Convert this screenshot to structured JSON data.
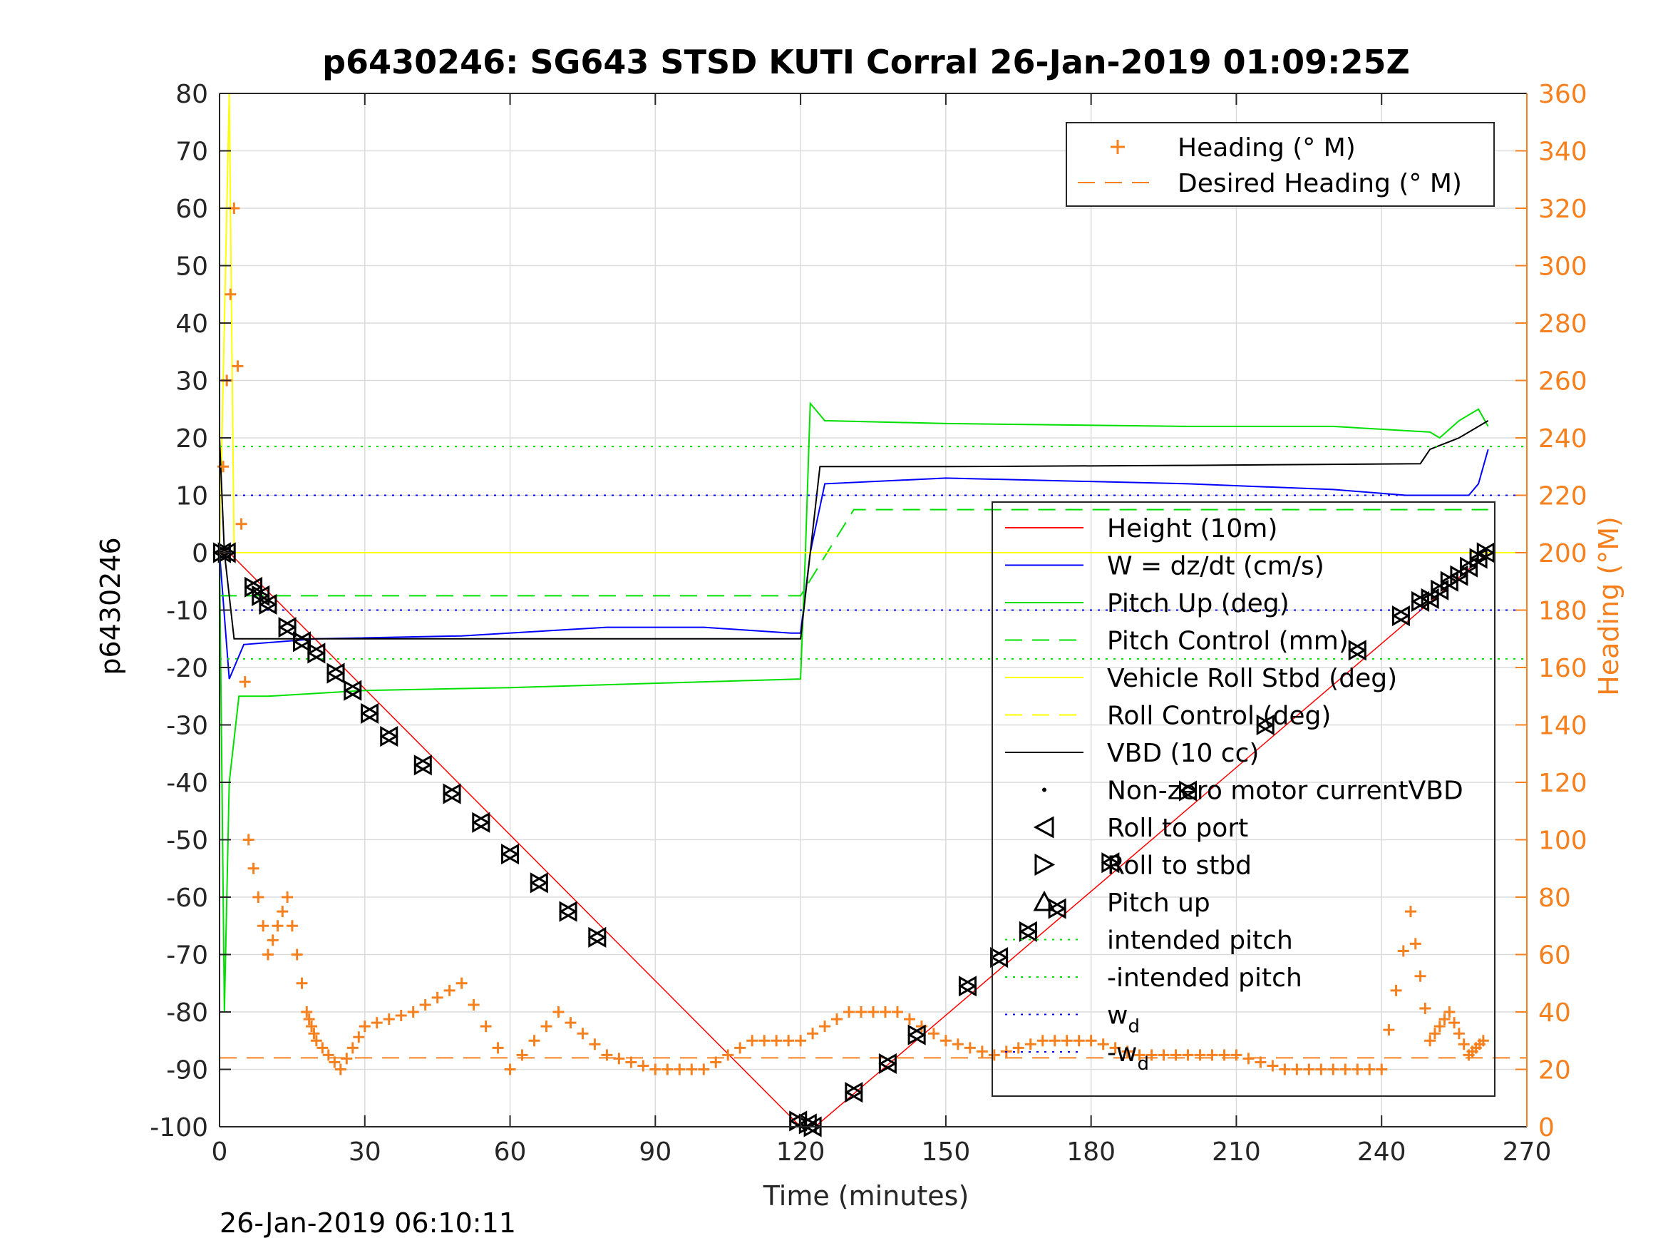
{
  "chart_data": {
    "type": "line",
    "title": "p6430246: SG643 STSD KUTI Corral 26-Jan-2019 01:09:25Z",
    "xlabel": "Time (minutes)",
    "ylabel": "p6430246",
    "y2label": "Heading (°M)",
    "footer": "26-Jan-2019 06:10:11",
    "xlim": [
      0,
      270
    ],
    "ylim": [
      -100,
      80
    ],
    "y2lim": [
      0,
      360
    ],
    "grid": true,
    "xticks": [
      "0",
      "30",
      "60",
      "90",
      "120",
      "150",
      "180",
      "210",
      "240",
      "270"
    ],
    "yticks": [
      "80",
      "70",
      "60",
      "50",
      "40",
      "30",
      "20",
      "10",
      "0",
      "-10",
      "-20",
      "-30",
      "-40",
      "-50",
      "-60",
      "-70",
      "-80",
      "-90",
      "-100"
    ],
    "y2ticks": [
      "360",
      "340",
      "320",
      "300",
      "280",
      "260",
      "240",
      "220",
      "200",
      "180",
      "160",
      "140",
      "120",
      "100",
      "80",
      "60",
      "40",
      "20",
      "0"
    ],
    "legend_right": [
      "Heading (° M)",
      "Desired Heading (° M)"
    ],
    "legend_main": [
      "Height (10m)",
      "W = dz/dt (cm/s)",
      "Pitch Up (deg)",
      "Pitch Control (mm)",
      "Vehicle Roll Stbd (deg)",
      "Roll Control (deg)",
      "VBD (10 cc)",
      "Non-zero motor currentVBD",
      "Roll to port",
      "Roll to stbd",
      "Pitch up",
      "intended pitch",
      "-intended pitch",
      "w",
      "-w"
    ],
    "legend_subscript": "d",
    "colors": {
      "height": "#ff0000",
      "w": "#0000ff",
      "pitch": "#00e000",
      "roll": "#ffff00",
      "vbd": "#000000",
      "heading": "#f7801e",
      "axis": "#262626",
      "grid": "#dcdcdc"
    },
    "series": [
      {
        "name": "Height (10m)",
        "x": [
          0,
          2,
          120,
          122,
          123,
          262
        ],
        "y": [
          0,
          0,
          -100,
          -100,
          -100,
          0
        ]
      },
      {
        "name": "W = dz/dt (cm/s)",
        "x": [
          0,
          2,
          5,
          20,
          50,
          80,
          100,
          118,
          120,
          122,
          125,
          150,
          200,
          230,
          245,
          258,
          260,
          262
        ],
        "y": [
          0,
          -22,
          -16,
          -15,
          -14.5,
          -13,
          -13,
          -14,
          -14,
          0,
          12,
          13,
          12,
          11,
          10,
          10,
          12,
          18
        ]
      },
      {
        "name": "Pitch Up (deg)",
        "x": [
          0,
          1,
          2,
          4,
          10,
          30,
          60,
          100,
          120,
          121,
          122,
          125,
          150,
          200,
          230,
          250,
          252,
          256,
          260,
          262
        ],
        "y": [
          0,
          -80,
          -40,
          -25,
          -25,
          -24,
          -23.5,
          -22.5,
          -22,
          0,
          26,
          23,
          22.5,
          22,
          22,
          21,
          20,
          23,
          25,
          22
        ]
      },
      {
        "name": "Pitch Control (mm)",
        "x": [
          0,
          120,
          131,
          262
        ],
        "y": [
          -7.5,
          -7.5,
          7.5,
          7.5
        ]
      },
      {
        "name": "Vehicle Roll Stbd (deg)",
        "x": [
          0,
          2,
          3,
          270
        ],
        "y": [
          0,
          80,
          0,
          0
        ]
      },
      {
        "name": "VBD (10 cc)",
        "x": [
          0,
          1,
          3,
          120,
          122,
          124,
          150,
          200,
          248,
          250,
          256,
          262
        ],
        "y": [
          20,
          0,
          -15,
          -15,
          0,
          15,
          15,
          15.2,
          15.5,
          18,
          20,
          23
        ]
      },
      {
        "name": "Heading (° M)",
        "x": [
          0,
          3,
          6,
          10,
          14,
          18,
          20,
          25,
          30,
          40,
          50,
          60,
          70,
          80,
          90,
          100,
          110,
          120,
          130,
          140,
          150,
          160,
          170,
          180,
          190,
          200,
          210,
          220,
          230,
          240,
          246,
          250,
          254,
          258,
          261
        ],
        "y": [
          200,
          320,
          100,
          60,
          80,
          40,
          30,
          20,
          35,
          40,
          50,
          20,
          40,
          25,
          20,
          20,
          30,
          30,
          40,
          40,
          30,
          25,
          30,
          30,
          25,
          25,
          25,
          20,
          20,
          20,
          75,
          30,
          40,
          25,
          30
        ]
      },
      {
        "name": "Desired Heading (° M)",
        "x": [
          0,
          270
        ],
        "y": [
          24,
          24
        ]
      },
      {
        "name": "intended pitch",
        "x": [
          0,
          270
        ],
        "y": [
          18.5,
          18.5
        ]
      },
      {
        "name": "-intended pitch",
        "x": [
          0,
          270
        ],
        "y": [
          -18.5,
          -18.5
        ]
      },
      {
        "name": "w_d",
        "x": [
          0,
          270
        ],
        "y": [
          10,
          10
        ]
      },
      {
        "name": "-w_d",
        "x": [
          0,
          270
        ],
        "y": [
          -10,
          -10
        ]
      }
    ],
    "roll_markers": [
      {
        "x": 0.5,
        "y": 0
      },
      {
        "x": 1.5,
        "y": 0
      },
      {
        "x": 7,
        "y": -6
      },
      {
        "x": 8.5,
        "y": -7.5
      },
      {
        "x": 10,
        "y": -9
      },
      {
        "x": 14,
        "y": -13
      },
      {
        "x": 17,
        "y": -15.5
      },
      {
        "x": 20,
        "y": -17.5
      },
      {
        "x": 24,
        "y": -21
      },
      {
        "x": 27.5,
        "y": -24
      },
      {
        "x": 31,
        "y": -28
      },
      {
        "x": 35,
        "y": -32
      },
      {
        "x": 42,
        "y": -37
      },
      {
        "x": 48,
        "y": -42
      },
      {
        "x": 54,
        "y": -47
      },
      {
        "x": 60,
        "y": -52.5
      },
      {
        "x": 66,
        "y": -57.5
      },
      {
        "x": 72,
        "y": -62.5
      },
      {
        "x": 78,
        "y": -67
      },
      {
        "x": 119.5,
        "y": -99
      },
      {
        "x": 121.5,
        "y": -99.5
      },
      {
        "x": 122.5,
        "y": -100
      },
      {
        "x": 131,
        "y": -94
      },
      {
        "x": 138,
        "y": -89
      },
      {
        "x": 144,
        "y": -84
      },
      {
        "x": 154.5,
        "y": -75.5
      },
      {
        "x": 161,
        "y": -70.5
      },
      {
        "x": 167,
        "y": -66
      },
      {
        "x": 173,
        "y": -62
      },
      {
        "x": 184,
        "y": -54
      },
      {
        "x": 200,
        "y": -41.5
      },
      {
        "x": 216,
        "y": -30
      },
      {
        "x": 235,
        "y": -17
      },
      {
        "x": 244,
        "y": -11
      },
      {
        "x": 248,
        "y": -8.5
      },
      {
        "x": 250,
        "y": -8
      },
      {
        "x": 252,
        "y": -6.5
      },
      {
        "x": 254,
        "y": -5
      },
      {
        "x": 256,
        "y": -4
      },
      {
        "x": 258,
        "y": -2.5
      },
      {
        "x": 260,
        "y": -1
      },
      {
        "x": 261.5,
        "y": 0
      }
    ]
  }
}
